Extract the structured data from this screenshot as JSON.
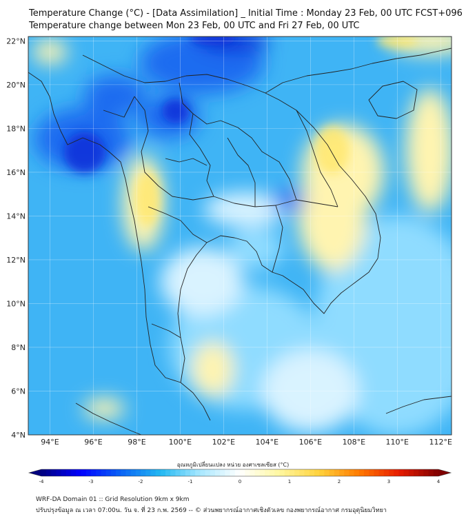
{
  "header": {
    "title_line1": "Temperature Change (°C) - [Data Assimilation] _ Initial Time : Monday 23 Feb, 00 UTC FCST+096",
    "title_line2": "Temperature change between Mon 23 Feb, 00 UTC and Fri 27 Feb, 00 UTC"
  },
  "map": {
    "lat_labels": [
      "22°N",
      "20°N",
      "18°N",
      "16°N",
      "14°N",
      "12°N",
      "10°N",
      "8°N",
      "6°N",
      "4°N"
    ],
    "lon_labels": [
      "94°E",
      "96°E",
      "98°E",
      "100°E",
      "102°E",
      "104°E",
      "106°E",
      "108°E",
      "110°E",
      "112°E"
    ],
    "lat_values": [
      22,
      20,
      18,
      16,
      14,
      12,
      10,
      8,
      6,
      4
    ],
    "lon_values": [
      94,
      96,
      98,
      100,
      102,
      104,
      106,
      108,
      110,
      112
    ],
    "extent": {
      "lon_min": 93,
      "lon_max": 112.5,
      "lat_min": 4,
      "lat_max": 22.2
    },
    "field_colors": {
      "deep_blue": "#0a2fd8",
      "blue": "#1e6cf0",
      "light_blue": "#3fb4f5",
      "cyan": "#8fdcff",
      "pale": "#d9f3ff",
      "pale_yellow": "#fff4b0",
      "yellow": "#ffe870"
    }
  },
  "colorbar": {
    "label": "อุณหภูมิเปลี่ยนแปลง หน่วย องศาเซลเซียส (°C)",
    "tick_labels": [
      "-4",
      "-3",
      "-2",
      "-1",
      "0",
      "1",
      "2",
      "3",
      "4"
    ],
    "tick_values": [
      -4,
      -3,
      -2,
      -1,
      0,
      1,
      2,
      3,
      4
    ],
    "min": -4,
    "max": 4,
    "colors": [
      "#00007f",
      "#0000ff",
      "#0a63f5",
      "#22b8f2",
      "#a8e8ff",
      "#ffffff",
      "#fff7a0",
      "#ffd23c",
      "#ff7a00",
      "#e81c00",
      "#7f0000"
    ]
  },
  "footer": {
    "line1": "WRF-DA Domain 01 :: Grid Resolution 9km x 9km",
    "line2": "ปรับปรุงข้อมูล ณ เวลา 07:00น. วัน จ. ที่ 23 ก.พ. 2569 -- © ส่วนพยากรณ์อากาศเชิงตัวเลข กองพยากรณ์อากาศ กรมอุตุนิยมวิทยา"
  }
}
